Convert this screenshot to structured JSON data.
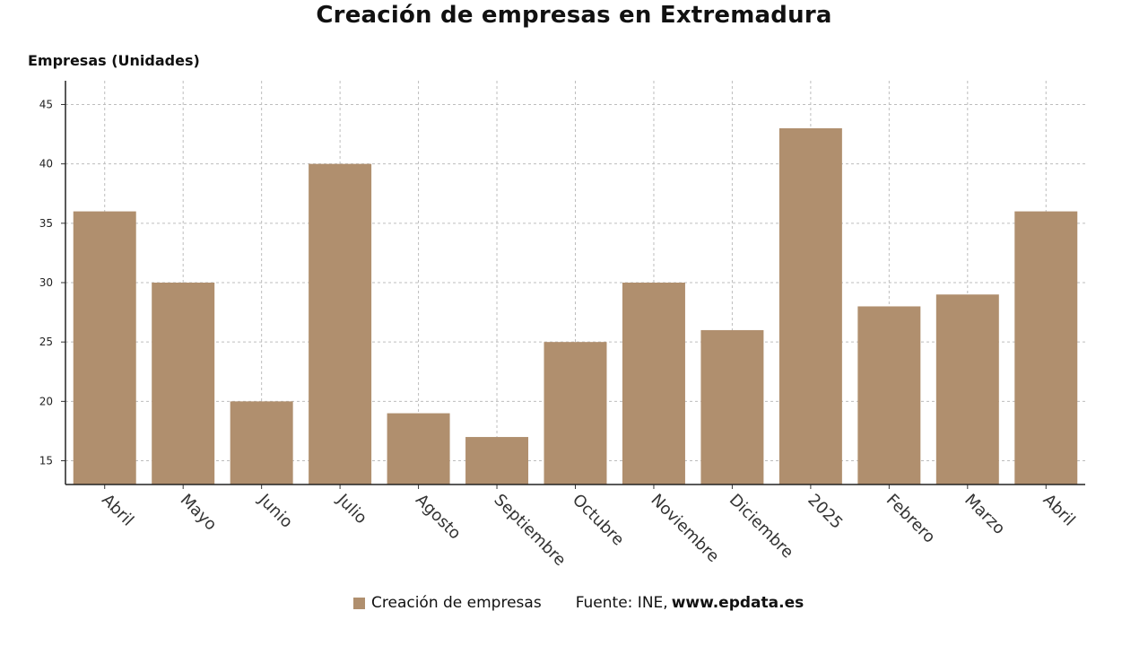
{
  "title": "Creación de empresas en Extremadura",
  "ylabel": "Empresas (Unidades)",
  "legend": {
    "label": "Creación de empresas",
    "color": "#b08f6e"
  },
  "source": {
    "label": "Fuente: INE,",
    "site": "www.epdata.es"
  },
  "chart_data": {
    "type": "bar",
    "title": "Creación de empresas en Extremadura",
    "ylabel": "Empresas (Unidades)",
    "xlabel": "",
    "categories": [
      "Abril",
      "Mayo",
      "Junio",
      "Julio",
      "Agosto",
      "Septiembre",
      "Octubre",
      "Noviembre",
      "Diciembre",
      "2025",
      "Febrero",
      "Marzo",
      "Abril"
    ],
    "series": [
      {
        "name": "Creación de empresas",
        "values": [
          36,
          30,
          20,
          40,
          19,
          17,
          25,
          30,
          26,
          43,
          28,
          29,
          36
        ]
      }
    ],
    "ylim": [
      13,
      47
    ],
    "yticks": [
      15,
      20,
      25,
      30,
      35,
      40,
      45
    ],
    "grid": true,
    "legend_position": "bottom",
    "bar_color": "#b08f6e"
  }
}
